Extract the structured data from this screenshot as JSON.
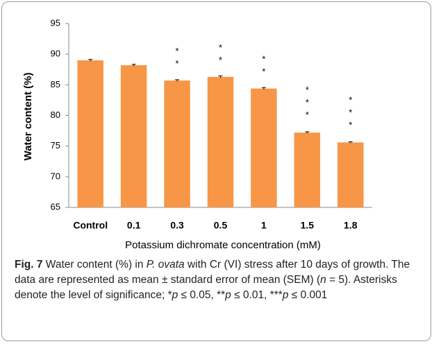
{
  "chart_data": {
    "type": "bar",
    "y_label": "Water content (%)",
    "x_label": "Potassium dichromate concentration (mM)",
    "categories": [
      "Control",
      "0.1",
      "0.3",
      "0.5",
      "1",
      "1.5",
      "1.8"
    ],
    "values": [
      89.0,
      88.2,
      85.7,
      86.3,
      84.4,
      77.2,
      75.6
    ],
    "errors": [
      0.15,
      0.15,
      0.15,
      0.15,
      0.15,
      0.15,
      0.1
    ],
    "color": "#f79646",
    "annotations": [
      {
        "x": "0.3",
        "text": "**"
      },
      {
        "x": "0.5",
        "text": "**"
      },
      {
        "x": "1",
        "text": "**"
      },
      {
        "x": "1.5",
        "text": "***"
      },
      {
        "x": "1.8",
        "text": "***"
      }
    ],
    "ylim": [
      65,
      95
    ],
    "yticks": [
      65,
      70,
      75,
      80,
      85,
      90,
      95
    ],
    "grid": false
  },
  "caption": {
    "label": "Fig. 7",
    "parts": [
      {
        "text": " Water content (%) in "
      },
      {
        "text": "P. ovata",
        "italic": true
      },
      {
        "text": " with Cr (VI) stress after 10 days of growth. The data are represented as mean ± standard error of mean (SEM) ("
      },
      {
        "text": "n",
        "italic": true
      },
      {
        "text": " = 5). Asterisks denote the level of significance; *"
      },
      {
        "text": "p",
        "italic": true
      },
      {
        "text": " ≤ 0.05, **"
      },
      {
        "text": "p",
        "italic": true
      },
      {
        "text": " ≤ 0.01, ***"
      },
      {
        "text": "p",
        "italic": true
      },
      {
        "text": " ≤ 0.001"
      }
    ]
  }
}
